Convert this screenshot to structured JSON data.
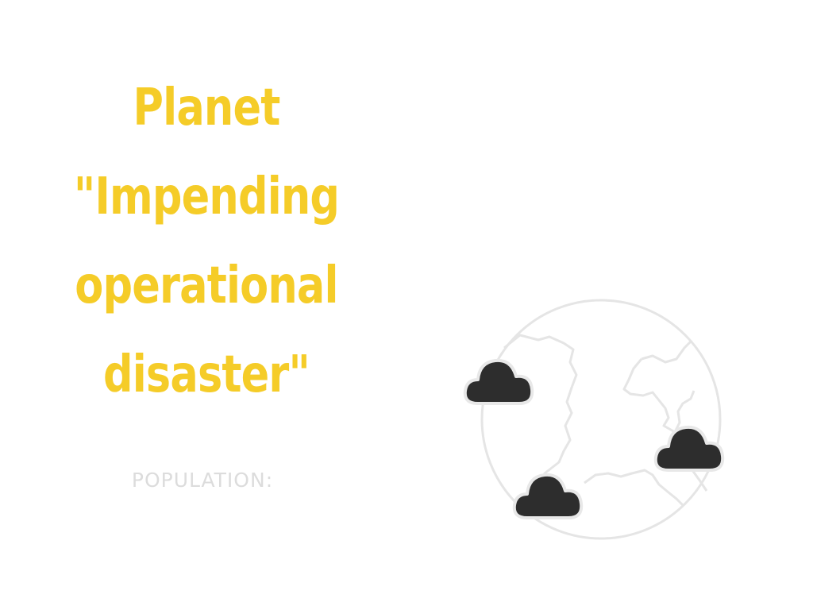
{
  "title": {
    "lines": [
      "Planet",
      "\"Impending",
      "operational",
      "disaster\""
    ]
  },
  "population": {
    "label": "POPULATION:"
  },
  "planet": {
    "clouds": [
      {
        "name": "cloud-icon"
      },
      {
        "name": "cloud-icon"
      },
      {
        "name": "cloud-icon"
      }
    ]
  },
  "colors": {
    "title": "#f5cc28",
    "label": "#dcdcdc",
    "planet_outline": "#e5e5e5",
    "cloud_fill": "#2d2d2d",
    "cloud_outline": "#e8e8e8"
  }
}
